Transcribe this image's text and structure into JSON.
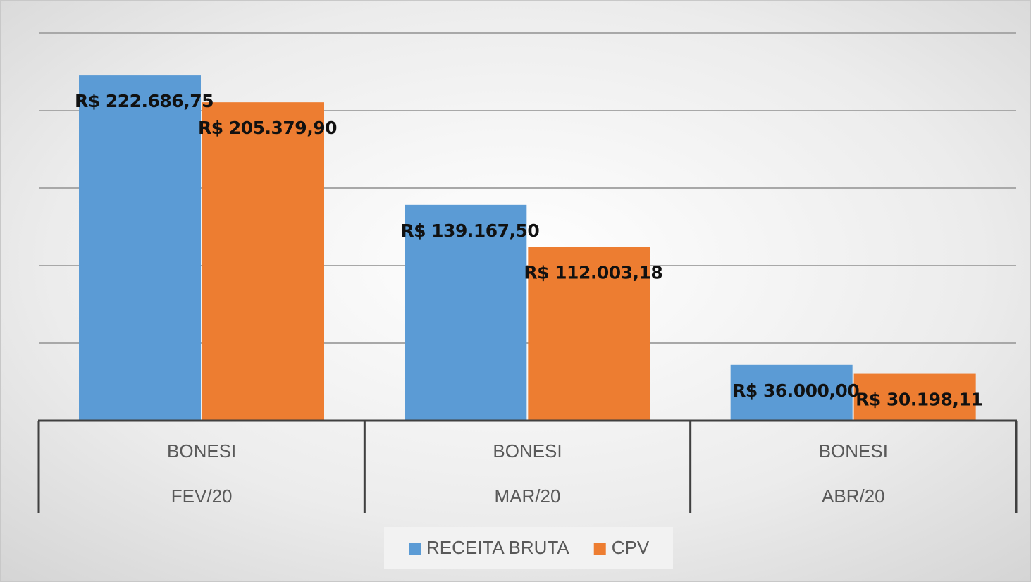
{
  "chart_data": {
    "type": "bar",
    "categories": [
      [
        "BONESI",
        "FEV/20"
      ],
      [
        "BONESI",
        "MAR/20"
      ],
      [
        "BONESI",
        "ABR/20"
      ]
    ],
    "series": [
      {
        "name": "RECEITA BRUTA",
        "color": "#5b9bd5",
        "values": [
          222686.75,
          139167.5,
          36000.0
        ],
        "value_labels": [
          "R$ 222.686,75",
          "R$ 139.167,50",
          "R$ 36.000,00"
        ]
      },
      {
        "name": "CPV",
        "color": "#ed7d31",
        "values": [
          205379.9,
          112003.18,
          30198.11
        ],
        "value_labels": [
          "R$ 205.379,90",
          "R$ 112.003,18",
          "R$ 30.198,11"
        ]
      }
    ],
    "ylim": [
      0,
      250000
    ],
    "yticks": [
      0,
      50000,
      100000,
      150000,
      200000,
      250000
    ],
    "grid": true,
    "legend": "bottom"
  }
}
